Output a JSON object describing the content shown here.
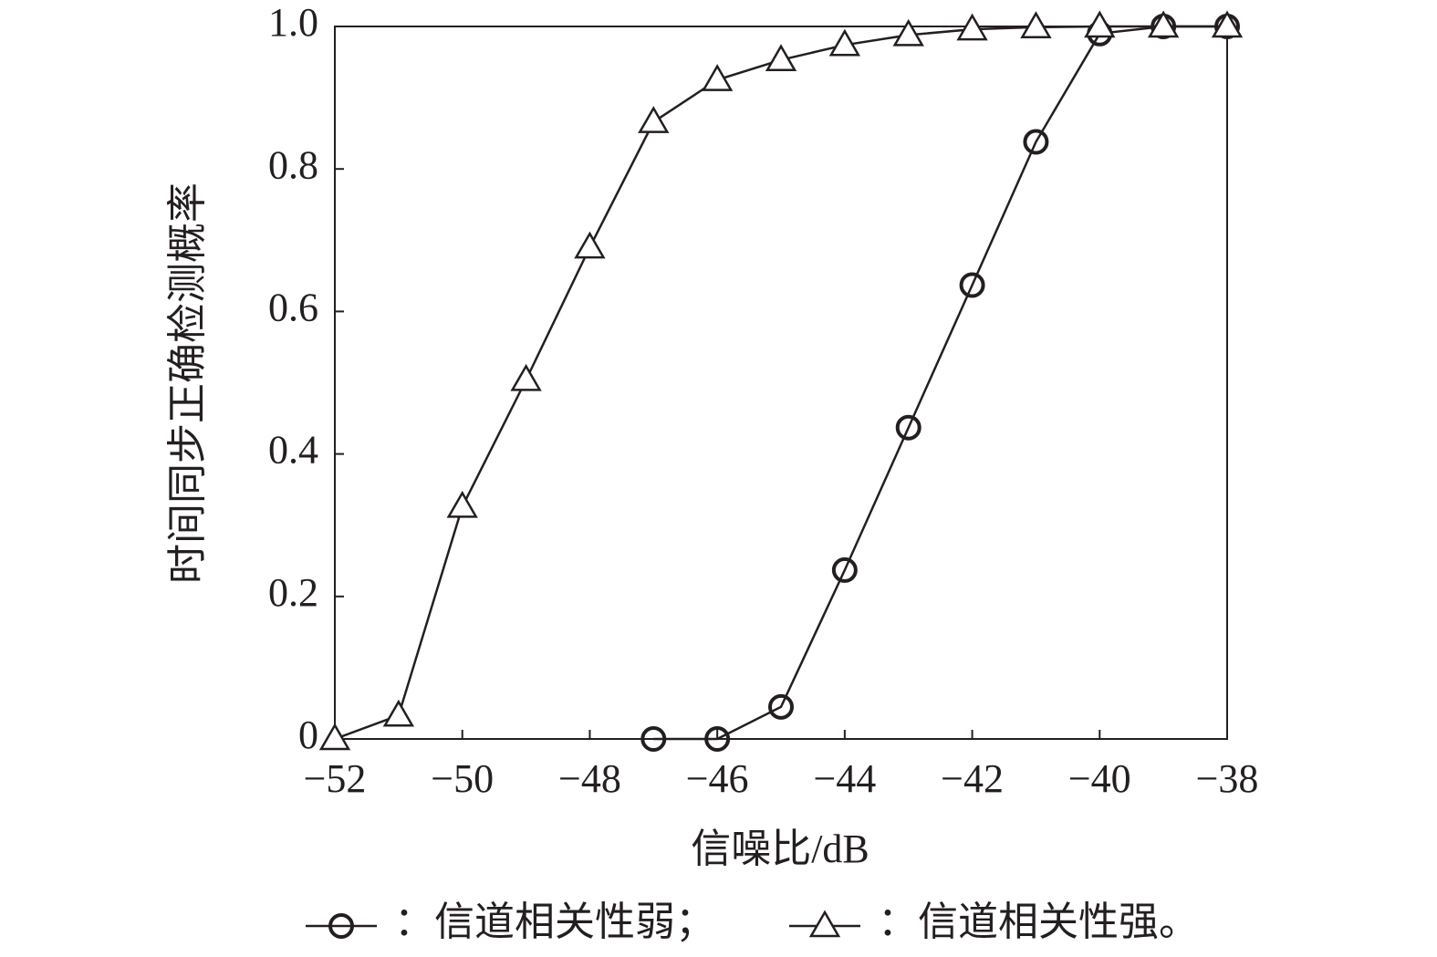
{
  "chart_data": {
    "type": "line",
    "x_label": "信噪比/dB",
    "y_label": "时间同步正确检测概率",
    "xlim": [
      -52,
      -38
    ],
    "xticks": [
      {
        "value": -52,
        "label": "−52"
      },
      {
        "value": -50,
        "label": "−50"
      },
      {
        "value": -48,
        "label": "−48"
      },
      {
        "value": -46,
        "label": "−46"
      },
      {
        "value": -44,
        "label": "−44"
      },
      {
        "value": -42,
        "label": "−42"
      },
      {
        "value": -40,
        "label": "−40"
      },
      {
        "value": -38,
        "label": "−38"
      }
    ],
    "ylim": [
      0,
      1
    ],
    "yticks": [
      0,
      0.2,
      0.4,
      0.6,
      0.8,
      {
        "value": 1,
        "label": "1.0"
      }
    ],
    "series": [
      {
        "name": "：信道相关性弱；",
        "marker": "circle",
        "color": "#231f20",
        "x": [
          -47,
          -46,
          -45,
          -44,
          -43,
          -42,
          -41,
          -40,
          -39,
          -38
        ],
        "values": [
          0,
          0,
          0.045,
          0.237,
          0.437,
          0.637,
          0.838,
          0.99,
          1.0,
          1.0
        ]
      },
      {
        "name": "：信道相关性强。",
        "marker": "triangle",
        "color": "#231f20",
        "x": [
          -52,
          -51,
          -50,
          -49,
          -48,
          -47,
          -46,
          -45,
          -44,
          -43,
          -42,
          -41,
          -40,
          -39,
          -38
        ],
        "values": [
          0,
          0.033,
          0.326,
          0.504,
          0.69,
          0.866,
          0.925,
          0.953,
          0.974,
          0.988,
          0.996,
          0.999,
          1.0,
          1.0,
          1.0
        ]
      }
    ]
  }
}
